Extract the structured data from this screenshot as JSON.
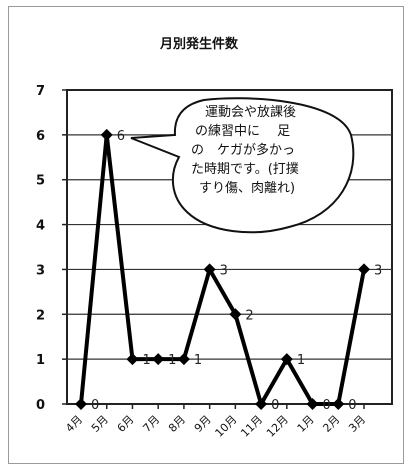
{
  "chart_data": {
    "type": "line",
    "title": "月別発生件数",
    "categories": [
      "4月",
      "5月",
      "6月",
      "7月",
      "8月",
      "9月",
      "10月",
      "11月",
      "12月",
      "1月",
      "2月",
      "3月"
    ],
    "values": [
      0,
      6,
      1,
      1,
      1,
      3,
      2,
      0,
      1,
      0,
      0,
      3
    ],
    "data_labels": [
      "0",
      "6",
      "1",
      "1",
      "1",
      "3",
      "2",
      "0",
      "1",
      "0",
      "0",
      "3"
    ],
    "yticks": [
      "0",
      "1",
      "2",
      "3",
      "4",
      "5",
      "6",
      "7"
    ],
    "ylim": [
      0,
      7
    ],
    "grid": true,
    "line_color": "#000000",
    "callout": {
      "lines": [
        "運動会や放課後",
        "の練習中に　 足",
        "の　ケガが多かっ",
        "た時期です。(打撲",
        "すり傷、肉離れ)"
      ]
    }
  }
}
